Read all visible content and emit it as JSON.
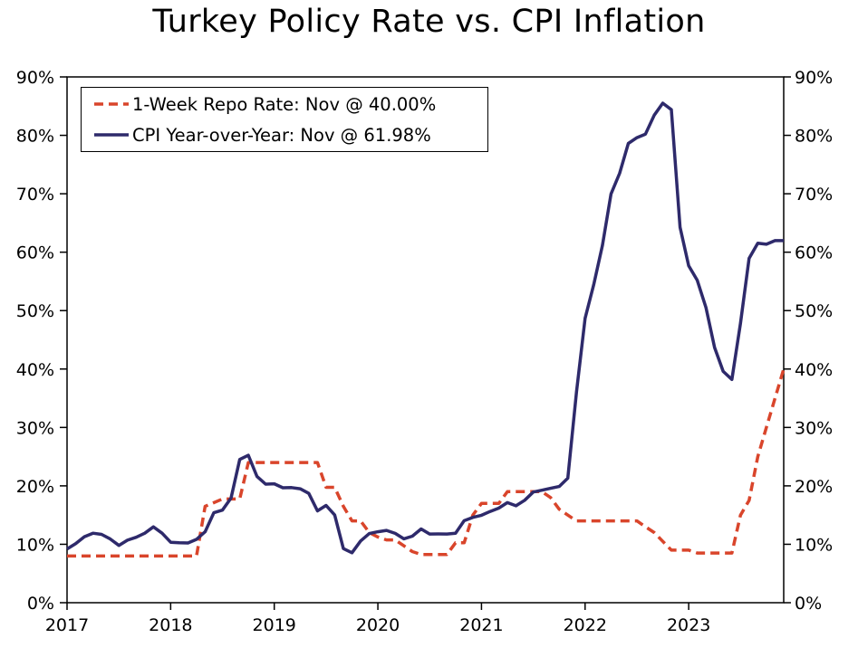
{
  "colors": {
    "repo": "#d9452b",
    "cpi": "#2e2a6b",
    "axis": "#000000",
    "background": "#ffffff"
  },
  "chart_data": {
    "type": "line",
    "title": "Turkey Policy Rate vs. CPI Inflation",
    "xlabel": "",
    "ylabel": "",
    "xlim": [
      2017.0,
      2023.917
    ],
    "ylim": [
      0,
      90
    ],
    "grid": false,
    "legend_position": "top-left",
    "x_tick_labels": [
      "2017",
      "2018",
      "2019",
      "2020",
      "2021",
      "2022",
      "2023"
    ],
    "x_tick_values": [
      2017,
      2018,
      2019,
      2020,
      2021,
      2022,
      2023
    ],
    "y_tick_values": [
      0,
      10,
      20,
      30,
      40,
      50,
      60,
      70,
      80,
      90
    ],
    "y_left_tick_labels": [
      "0%",
      "10%",
      "20%",
      "30%",
      "40%",
      "50%",
      "60%",
      "70%",
      "80%",
      "90%"
    ],
    "y_right_tick_labels": [
      "0%",
      "10%",
      "20%",
      "30%",
      "40%",
      "50%",
      "60%",
      "70%",
      "80%",
      "90%"
    ],
    "legend": [
      "1-Week Repo Rate: Nov @ 40.00%",
      "CPI Year-over-Year: Nov @ 61.98%"
    ],
    "series": [
      {
        "name": "1-Week Repo Rate",
        "style": "dashed",
        "color_key": "repo",
        "x": [
          2017.0,
          2018.083,
          2018.25,
          2018.333,
          2018.5,
          2018.583,
          2018.667,
          2018.75,
          2019.417,
          2019.5,
          2019.583,
          2019.667,
          2019.75,
          2019.833,
          2019.917,
          2020.0,
          2020.083,
          2020.167,
          2020.25,
          2020.333,
          2020.417,
          2020.583,
          2020.667,
          2020.75,
          2020.833,
          2020.917,
          2021.0,
          2021.167,
          2021.25,
          2021.583,
          2021.667,
          2021.75,
          2021.833,
          2021.917,
          2022.0,
          2022.5,
          2022.583,
          2022.667,
          2022.75,
          2022.833,
          2022.917,
          2023.0,
          2023.083,
          2023.333,
          2023.417,
          2023.5,
          2023.583,
          2023.667,
          2023.75,
          2023.833,
          2023.917
        ],
        "values": [
          8.0,
          8.0,
          8.0,
          16.5,
          17.75,
          17.75,
          17.75,
          24.0,
          24.0,
          19.75,
          19.75,
          16.5,
          14.0,
          14.0,
          12.0,
          11.25,
          10.75,
          10.75,
          9.75,
          8.75,
          8.25,
          8.25,
          8.25,
          10.25,
          10.25,
          15.0,
          17.0,
          17.0,
          19.0,
          19.0,
          18.0,
          16.0,
          15.0,
          14.0,
          14.0,
          14.0,
          13.0,
          12.0,
          10.5,
          9.0,
          9.0,
          9.0,
          8.5,
          8.5,
          8.5,
          15.0,
          17.5,
          25.0,
          30.0,
          35.0,
          40.0
        ]
      },
      {
        "name": "CPI Year-over-Year",
        "style": "solid",
        "color_key": "cpi",
        "x": [
          2017.0,
          2017.083,
          2017.167,
          2017.25,
          2017.333,
          2017.417,
          2017.5,
          2017.583,
          2017.667,
          2017.75,
          2017.833,
          2017.917,
          2018.0,
          2018.083,
          2018.167,
          2018.25,
          2018.333,
          2018.417,
          2018.5,
          2018.583,
          2018.667,
          2018.75,
          2018.833,
          2018.917,
          2019.0,
          2019.083,
          2019.167,
          2019.25,
          2019.333,
          2019.417,
          2019.5,
          2019.583,
          2019.667,
          2019.75,
          2019.833,
          2019.917,
          2020.0,
          2020.083,
          2020.167,
          2020.25,
          2020.333,
          2020.417,
          2020.5,
          2020.583,
          2020.667,
          2020.75,
          2020.833,
          2020.917,
          2021.0,
          2021.083,
          2021.167,
          2021.25,
          2021.333,
          2021.417,
          2021.5,
          2021.583,
          2021.667,
          2021.75,
          2021.833,
          2021.917,
          2022.0,
          2022.083,
          2022.167,
          2022.25,
          2022.333,
          2022.417,
          2022.5,
          2022.583,
          2022.667,
          2022.75,
          2022.833,
          2022.917,
          2023.0,
          2023.083,
          2023.167,
          2023.25,
          2023.333,
          2023.417,
          2023.5,
          2023.583,
          2023.667,
          2023.75,
          2023.833,
          2023.917
        ],
        "values": [
          9.2,
          10.1,
          11.3,
          11.9,
          11.7,
          10.9,
          9.8,
          10.7,
          11.2,
          11.9,
          12.98,
          11.9,
          10.35,
          10.26,
          10.23,
          10.85,
          12.15,
          15.39,
          15.85,
          17.9,
          24.52,
          25.24,
          21.62,
          20.3,
          20.35,
          19.67,
          19.71,
          19.5,
          18.71,
          15.72,
          16.65,
          15.01,
          9.26,
          8.55,
          10.56,
          11.84,
          12.15,
          12.37,
          11.86,
          10.94,
          11.39,
          12.62,
          11.76,
          11.77,
          11.75,
          11.89,
          14.03,
          14.6,
          14.97,
          15.61,
          16.19,
          17.14,
          16.59,
          17.53,
          18.95,
          19.25,
          19.58,
          19.89,
          21.31,
          36.08,
          48.69,
          54.44,
          61.14,
          69.97,
          73.5,
          78.62,
          79.6,
          80.21,
          83.45,
          85.51,
          84.39,
          64.27,
          57.68,
          55.18,
          50.51,
          43.68,
          39.59,
          38.21,
          47.83,
          58.94,
          61.53,
          61.36,
          61.98,
          61.98
        ]
      }
    ]
  }
}
